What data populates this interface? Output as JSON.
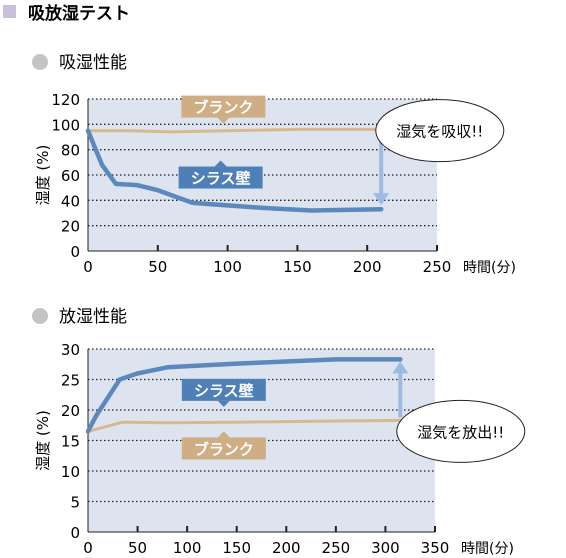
{
  "page": {
    "title": "吸放湿テスト",
    "bullet_color": "#c9c1dc",
    "dot_color": "#c4c4c4"
  },
  "chart_data": [
    {
      "type": "line",
      "title": "吸湿性能",
      "ylabel": "湿度 (%)",
      "xlabel": "時間(分)",
      "xlim": [
        0,
        250
      ],
      "ylim": [
        0,
        120
      ],
      "xticks": [
        0,
        50,
        100,
        150,
        200,
        250
      ],
      "yticks": [
        0,
        20,
        40,
        60,
        80,
        100,
        120
      ],
      "grid": "dotted-horizontal",
      "plot_background": "#dde3ef",
      "series": [
        {
          "name": "ブランク",
          "color": "#d8b88e",
          "points": [
            [
              0,
              95
            ],
            [
              30,
              95
            ],
            [
              60,
              94
            ],
            [
              100,
              95
            ],
            [
              150,
              96
            ],
            [
              210,
              96
            ]
          ]
        },
        {
          "name": "シラス壁",
          "color": "#5b89bd",
          "points": [
            [
              0,
              95
            ],
            [
              10,
              68
            ],
            [
              20,
              53
            ],
            [
              35,
              52
            ],
            [
              50,
              48
            ],
            [
              75,
              38
            ],
            [
              100,
              36
            ],
            [
              125,
              34
            ],
            [
              160,
              32
            ],
            [
              210,
              33
            ]
          ]
        }
      ],
      "labels": [
        {
          "series": "ブランク",
          "text": "ブランク",
          "x": 97,
          "y": 114,
          "color": "#cfae86"
        },
        {
          "series": "シラス壁",
          "text": "シラス壁",
          "x": 95,
          "y": 58,
          "color": "#4f7fb7"
        }
      ],
      "arrow": {
        "x": 210,
        "from": 93,
        "to": 37,
        "color": "#9dbbe0"
      },
      "callout": {
        "text": "湿気を吸収!!",
        "x": 252,
        "y": 95
      }
    },
    {
      "type": "line",
      "title": "放湿性能",
      "ylabel": "湿度 (%)",
      "xlabel": "時間(分)",
      "xlim": [
        0,
        350
      ],
      "ylim": [
        0,
        30
      ],
      "xticks": [
        0,
        50,
        100,
        150,
        200,
        250,
        300,
        350
      ],
      "yticks": [
        0,
        5,
        10,
        15,
        20,
        25,
        30
      ],
      "grid": "dotted-horizontal",
      "plot_background": "#dde3ef",
      "series": [
        {
          "name": "ブランク",
          "color": "#d8b88e",
          "points": [
            [
              0,
              16.5
            ],
            [
              35,
              18
            ],
            [
              80,
              17.9
            ],
            [
              150,
              18
            ],
            [
              250,
              18.2
            ],
            [
              315,
              18.3
            ]
          ]
        },
        {
          "name": "シラス壁",
          "color": "#5b89bd",
          "points": [
            [
              0,
              16.5
            ],
            [
              8,
              19
            ],
            [
              20,
              22
            ],
            [
              32,
              25
            ],
            [
              50,
              26
            ],
            [
              80,
              27
            ],
            [
              150,
              27.6
            ],
            [
              250,
              28.3
            ],
            [
              315,
              28.3
            ]
          ]
        }
      ],
      "labels": [
        {
          "series": "シラス壁",
          "text": "シラス壁",
          "x": 137,
          "y": 23.3,
          "color": "#4f7fb7"
        },
        {
          "series": "ブランク",
          "text": "ブランク",
          "x": 137,
          "y": 13.7,
          "color": "#cfae86"
        }
      ],
      "arrow": {
        "x": 315,
        "from": 18.8,
        "to": 27.8,
        "color": "#9dbbe0"
      },
      "callout": {
        "text": "湿気を放出!!",
        "x": 376,
        "y": 16.5
      }
    }
  ]
}
